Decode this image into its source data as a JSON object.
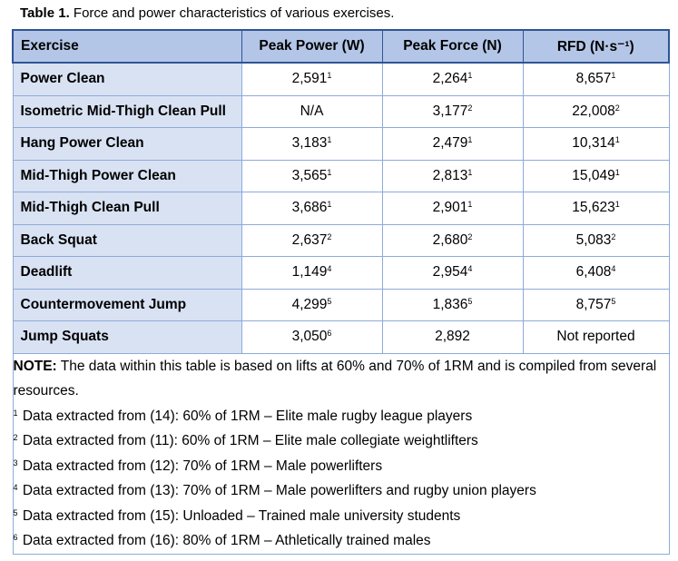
{
  "caption": {
    "label": "Table 1.",
    "text": " Force and power characteristics of various exercises."
  },
  "table": {
    "headers": [
      "Exercise",
      "Peak Power (W)",
      "Peak Force (N)",
      "RFD (N·s⁻¹)"
    ],
    "rows": [
      {
        "exercise": "Power Clean",
        "power": "2,591",
        "power_ref": "1",
        "force": "2,264",
        "force_ref": "1",
        "rfd": "8,657",
        "rfd_ref": "1"
      },
      {
        "exercise": "Isometric Mid-Thigh Clean Pull",
        "power": "N/A",
        "power_ref": "",
        "force": "3,177",
        "force_ref": "2",
        "rfd": "22,008",
        "rfd_ref": "2"
      },
      {
        "exercise": "Hang Power Clean",
        "power": "3,183",
        "power_ref": "1",
        "force": "2,479",
        "force_ref": "1",
        "rfd": "10,314",
        "rfd_ref": "1"
      },
      {
        "exercise": "Mid-Thigh Power Clean",
        "power": "3,565",
        "power_ref": "1",
        "force": "2,813",
        "force_ref": "1",
        "rfd": "15,049",
        "rfd_ref": "1"
      },
      {
        "exercise": "Mid-Thigh Clean Pull",
        "power": "3,686",
        "power_ref": "1",
        "force": "2,901",
        "force_ref": "1",
        "rfd": "15,623",
        "rfd_ref": "1"
      },
      {
        "exercise": "Back Squat",
        "power": "2,637",
        "power_ref": "2",
        "force": "2,680",
        "force_ref": "2",
        "rfd": "5,083",
        "rfd_ref": "2"
      },
      {
        "exercise": "Deadlift",
        "power": "1,149",
        "power_ref": "4",
        "force": "2,954",
        "force_ref": "4",
        "rfd": "6,408",
        "rfd_ref": "4"
      },
      {
        "exercise": "Countermovement Jump",
        "power": "4,299",
        "power_ref": "5",
        "force": "1,836",
        "force_ref": "5",
        "rfd": "8,757",
        "rfd_ref": "5"
      },
      {
        "exercise": "Jump Squats",
        "power": "3,050",
        "power_ref": "6",
        "force": "2,892",
        "force_ref": "",
        "rfd": "Not reported",
        "rfd_ref": ""
      }
    ]
  },
  "note": {
    "label": "NOTE:",
    "text": " The data within this table is based on lifts at 60% and 70% of 1RM and is compiled from several resources.",
    "footnotes": [
      {
        "mark": "1",
        "text": " Data extracted from (14): 60% of 1RM – Elite male rugby league players"
      },
      {
        "mark": "2",
        "text": " Data extracted from (11): 60% of 1RM  – Elite male collegiate weightlifters"
      },
      {
        "mark": "3",
        "text": " Data extracted from (12): 70% of 1RM  – Male powerlifters"
      },
      {
        "mark": "4",
        "text": " Data extracted from (13): 70% of 1RM – Male powerlifters and rugby union players"
      },
      {
        "mark": "5",
        "text": " Data extracted from (15): Unloaded – Trained male university students"
      },
      {
        "mark": "6",
        "text": " Data extracted from (16): 80% of 1RM – Athletically trained males"
      }
    ]
  }
}
